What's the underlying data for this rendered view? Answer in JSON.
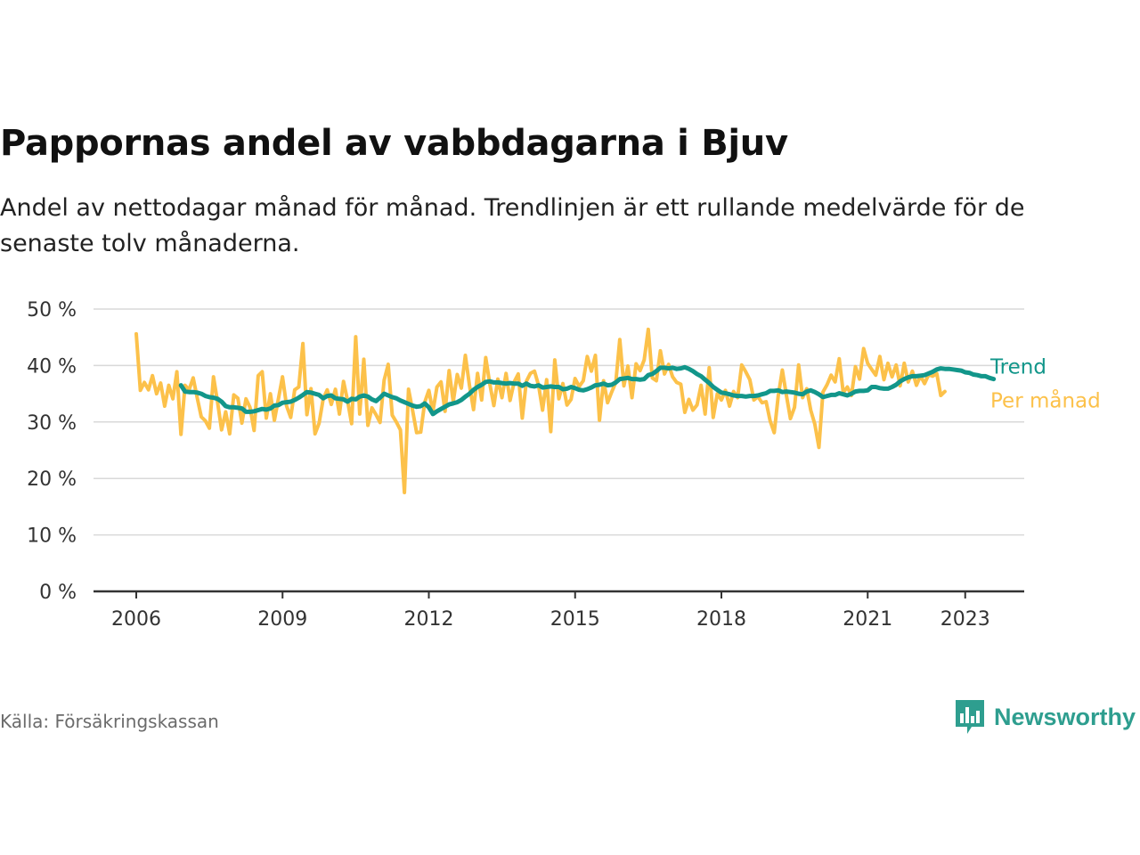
{
  "title": "Pappornas andel av vabbdagarna i Bjuv",
  "subtitle": "Andel av nettodagar månad för månad. Trendlinjen är ett rullande medelvärde för de senaste tolv månaderna.",
  "source": "Källa: Försäkringskassan",
  "brand": "Newsworthy",
  "colors": {
    "monthly": "#fcc14a",
    "trend": "#12968a",
    "grid": "#d9d9d9",
    "axis": "#333333",
    "brand": "#2e9e8f"
  },
  "chart_data": {
    "type": "line",
    "x_unit": "decimal year (month)",
    "ylim": [
      0,
      50
    ],
    "xlim": [
      2006,
      2024
    ],
    "y_ticks": [
      0,
      10,
      20,
      30,
      40,
      50
    ],
    "y_tick_labels": [
      "0 %",
      "10 %",
      "20 %",
      "30 %",
      "40 %",
      "50 %"
    ],
    "x_ticks": [
      2006,
      2009,
      2012,
      2015,
      2018,
      2021,
      2023
    ],
    "x_tick_labels": [
      "2006",
      "2009",
      "2012",
      "2015",
      "2018",
      "2021",
      "2023"
    ],
    "grid": true,
    "series": [
      {
        "name": "Per månad",
        "color": "#fcc14a",
        "start": 2006.0,
        "step": 0.08333,
        "values": [
          45.6,
          35.6,
          37.0,
          35.7,
          38.2,
          35.0,
          36.9,
          32.8,
          36.5,
          34.1,
          38.9,
          27.8,
          36.5,
          35.7,
          37.8,
          34.3,
          30.9,
          30.2,
          28.9,
          38.0,
          33.6,
          28.6,
          31.8,
          27.9,
          34.8,
          34.2,
          29.8,
          34.1,
          32.6,
          28.5,
          38.2,
          38.9,
          30.7,
          35.0,
          30.3,
          34.2,
          38.0,
          32.8,
          30.8,
          35.7,
          36.2,
          43.9,
          31.3,
          35.9,
          27.9,
          29.8,
          34.1,
          35.7,
          33.1,
          35.8,
          31.4,
          37.2,
          33.8,
          29.7,
          45.1,
          31.4,
          41.1,
          29.4,
          32.5,
          31.3,
          29.9,
          37.4,
          40.2,
          31.2,
          30.0,
          28.6,
          17.5,
          35.8,
          32.1,
          28.1,
          28.2,
          33.5,
          35.6,
          31.8,
          36.2,
          37.1,
          31.9,
          39.1,
          33.6,
          38.4,
          36.0,
          41.8,
          36.5,
          32.2,
          38.6,
          33.9,
          41.4,
          36.8,
          32.9,
          37.6,
          34.3,
          38.6,
          33.8,
          37.1,
          38.5,
          30.7,
          37.2,
          38.6,
          39.0,
          36.5,
          32.1,
          37.5,
          28.3,
          41.0,
          34.1,
          36.8,
          33.0,
          34.0,
          37.7,
          36.3,
          37.3,
          41.6,
          39.0,
          41.8,
          30.3,
          37.3,
          33.4,
          35.3,
          37.0,
          44.6,
          36.4,
          39.9,
          34.3,
          40.3,
          39.1,
          41.0,
          46.4,
          37.8,
          37.3,
          42.6,
          38.5,
          40.2,
          38.0,
          37.0,
          36.7,
          31.7,
          34.0,
          32.1,
          33.0,
          36.5,
          31.4,
          39.6,
          30.8,
          35.0,
          33.9,
          35.6,
          32.8,
          35.4,
          34.3,
          40.1,
          38.9,
          37.5,
          33.9,
          34.5,
          33.4,
          33.6,
          30.2,
          28.1,
          34.6,
          39.2,
          34.7,
          30.6,
          32.6,
          40.1,
          34.3,
          35.9,
          32.1,
          29.6,
          25.5,
          35.3,
          36.6,
          38.3,
          37.1,
          41.2,
          35.2,
          36.2,
          34.7,
          39.8,
          37.6,
          43.0,
          40.4,
          39.3,
          38.3,
          41.6,
          37.5,
          40.4,
          38.0,
          40.1,
          36.4,
          40.4,
          37.1,
          39.0,
          36.5,
          38.2,
          36.8,
          38.4,
          38.1,
          38.6,
          34.7,
          35.4
        ]
      },
      {
        "name": "Trend",
        "color": "#12968a",
        "start": 2006.9167,
        "step": 0.08333,
        "values": [
          36.5,
          35.4,
          35.3,
          35.3,
          35.2,
          35.0,
          34.6,
          34.4,
          34.3,
          34.1,
          33.6,
          32.8,
          32.6,
          32.6,
          32.5,
          32.4,
          31.8,
          31.8,
          31.9,
          32.1,
          32.3,
          32.2,
          32.4,
          32.9,
          33.0,
          33.4,
          33.5,
          33.6,
          33.9,
          34.3,
          34.8,
          35.3,
          35.2,
          35.0,
          34.8,
          34.2,
          34.6,
          34.7,
          34.2,
          34.1,
          34.0,
          33.6,
          34.1,
          34.0,
          34.5,
          34.7,
          34.5,
          34.0,
          33.7,
          34.3,
          35.0,
          34.7,
          34.4,
          34.2,
          33.8,
          33.5,
          33.2,
          32.9,
          32.7,
          32.8,
          33.3,
          32.6,
          31.4,
          31.9,
          32.3,
          32.7,
          33.1,
          33.3,
          33.5,
          33.9,
          34.5,
          35.0,
          35.7,
          36.2,
          36.6,
          37.1,
          37.2,
          37.0,
          37.0,
          36.9,
          36.8,
          36.9,
          36.8,
          36.8,
          36.4,
          36.8,
          36.4,
          36.3,
          36.5,
          36.1,
          36.2,
          36.3,
          36.2,
          36.2,
          35.8,
          35.9,
          36.2,
          36.0,
          35.7,
          35.6,
          35.8,
          36.1,
          36.5,
          36.6,
          36.8,
          36.5,
          36.6,
          37.0,
          37.6,
          37.7,
          37.8,
          37.6,
          37.6,
          37.5,
          37.6,
          38.3,
          38.5,
          39.0,
          39.6,
          39.6,
          39.5,
          39.6,
          39.4,
          39.5,
          39.7,
          39.4,
          39.0,
          38.5,
          38.1,
          37.5,
          36.9,
          36.2,
          35.7,
          35.2,
          35.1,
          34.9,
          34.7,
          34.6,
          34.6,
          34.5,
          34.6,
          34.6,
          34.7,
          34.9,
          35.1,
          35.5,
          35.5,
          35.6,
          35.3,
          35.4,
          35.3,
          35.2,
          35.0,
          34.9,
          35.4,
          35.6,
          35.3,
          34.9,
          34.4,
          34.6,
          34.8,
          34.8,
          35.1,
          34.9,
          34.7,
          35.0,
          35.4,
          35.5,
          35.5,
          35.6,
          36.2,
          36.2,
          36.0,
          35.9,
          35.9,
          36.2,
          36.6,
          37.2,
          37.6,
          37.9,
          38.1,
          38.1,
          38.2,
          38.3,
          38.6,
          38.9,
          39.3,
          39.5,
          39.4,
          39.4,
          39.3,
          39.2,
          39.1,
          38.8,
          38.7,
          38.4,
          38.3,
          38.1,
          38.1,
          37.8,
          37.6
        ]
      }
    ]
  }
}
